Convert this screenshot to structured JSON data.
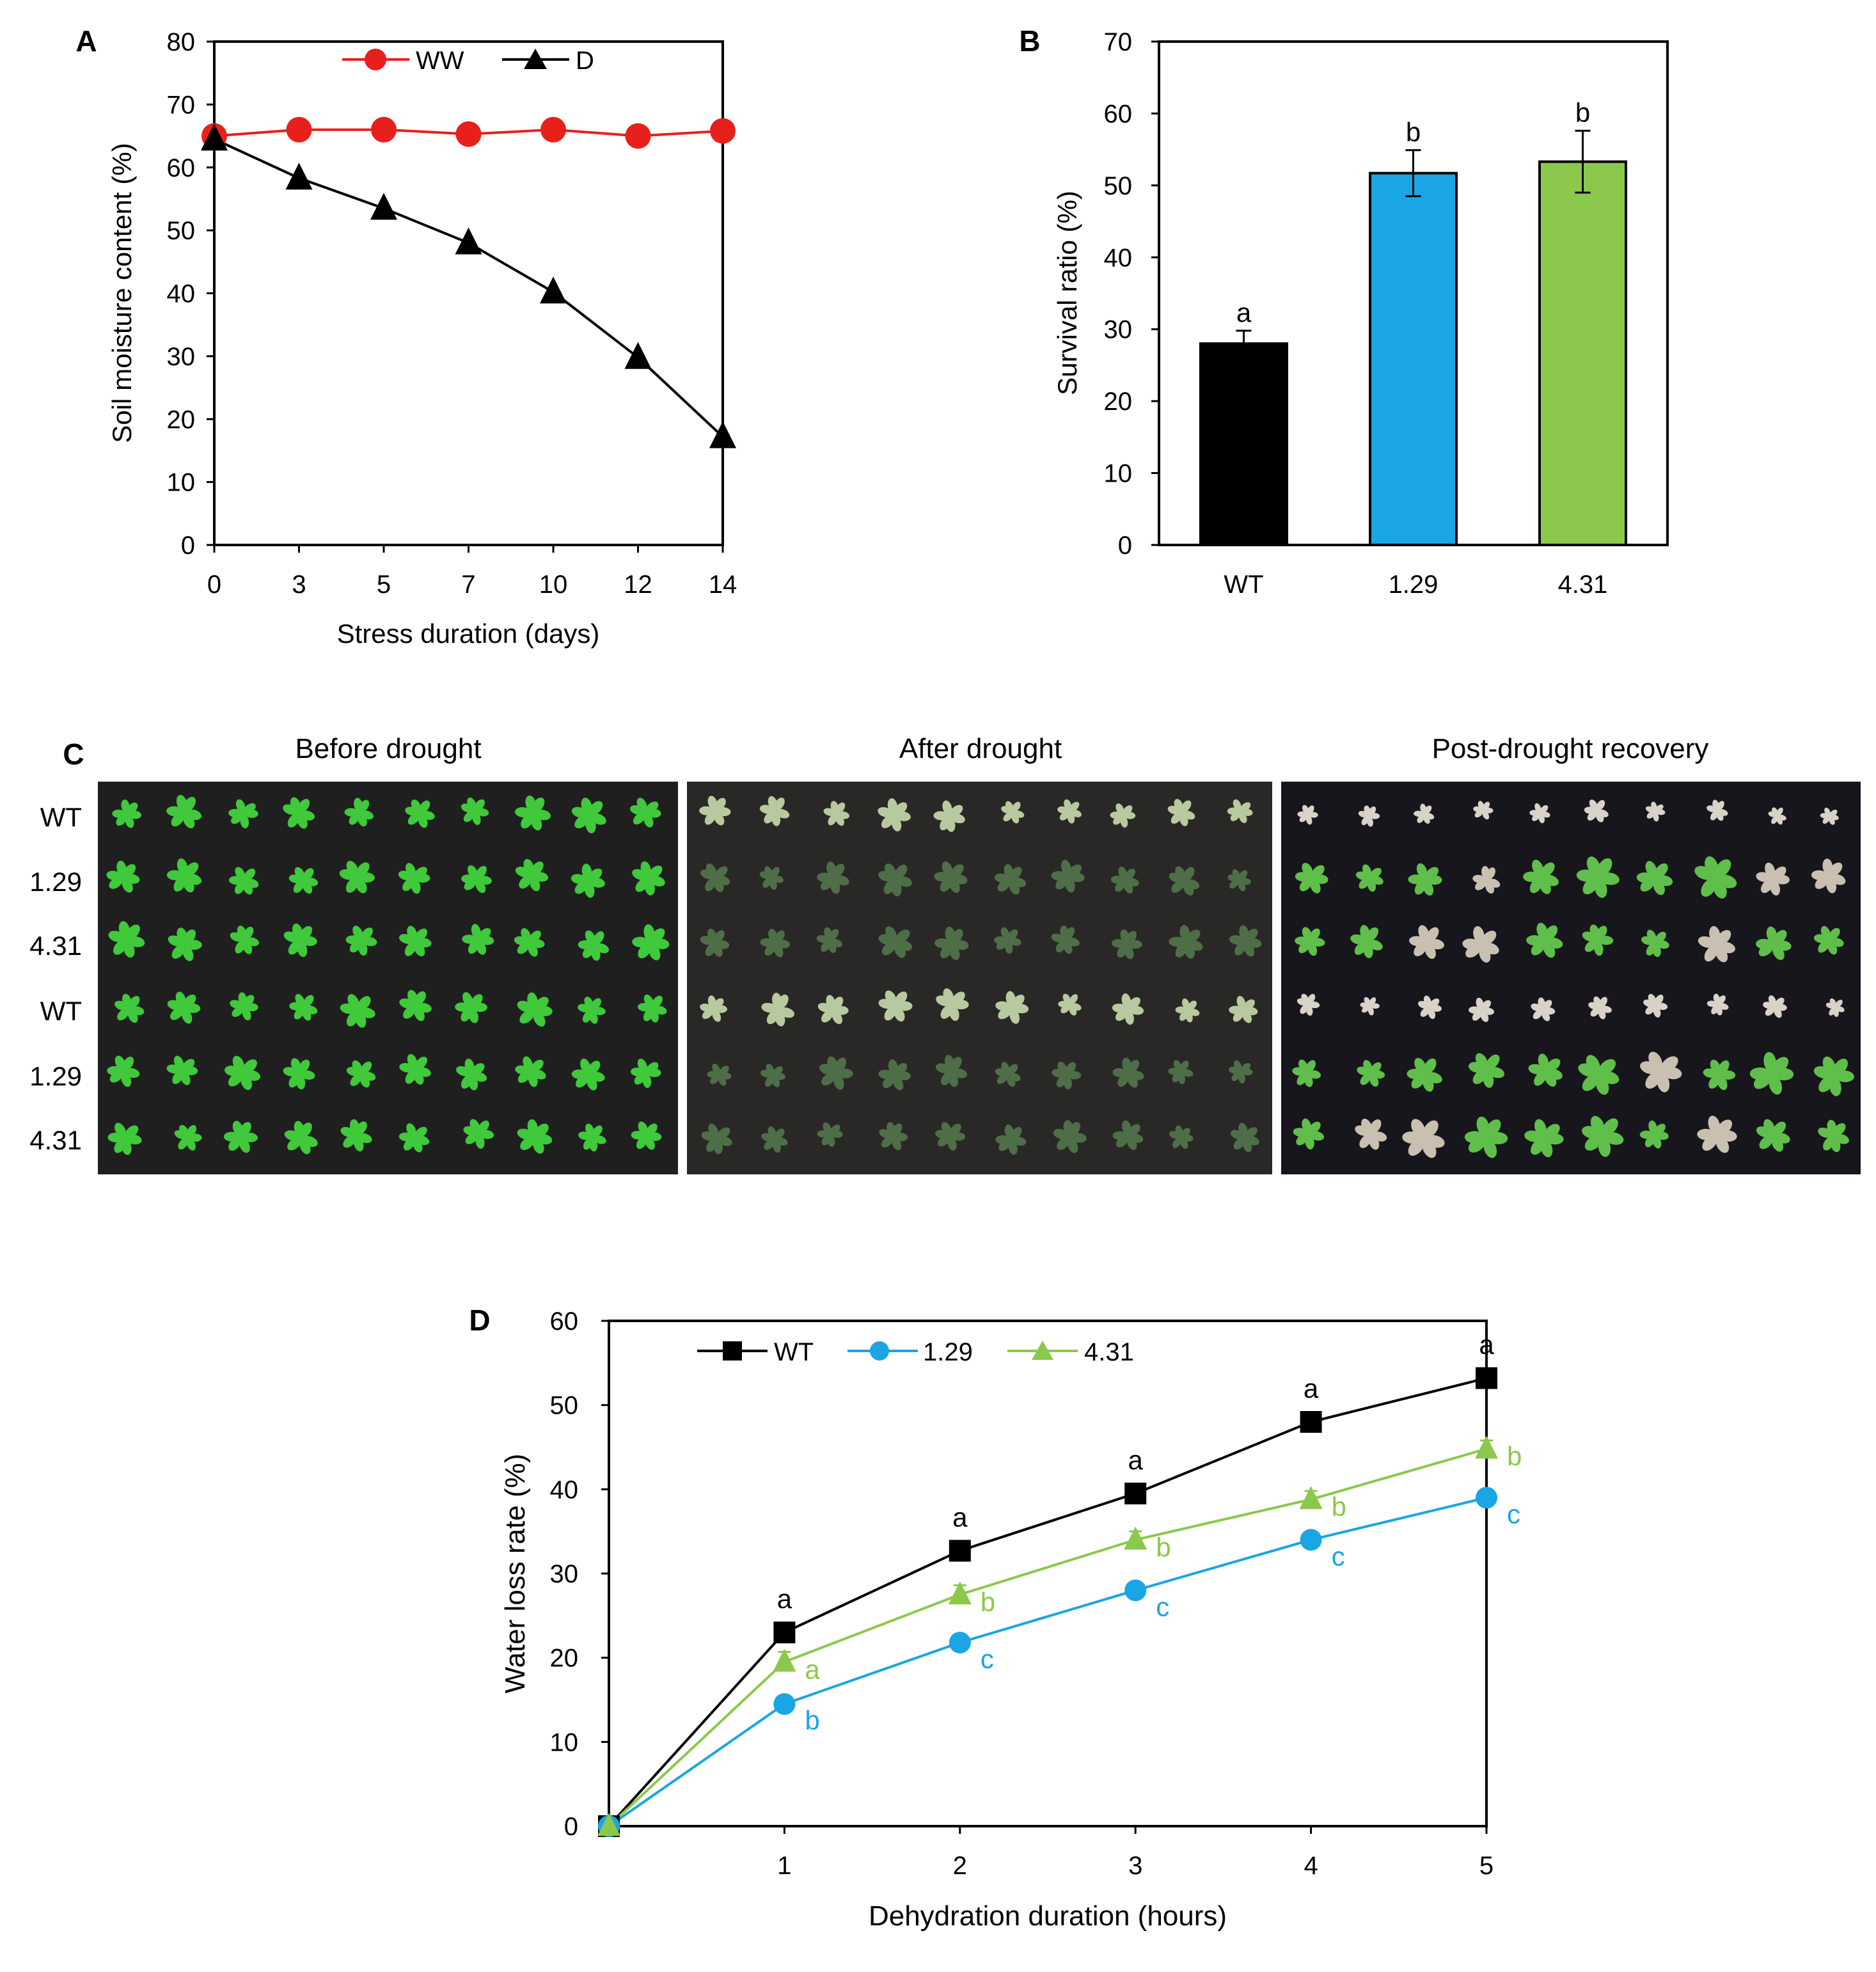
{
  "colors": {
    "ww": "#e8201c",
    "d": "#000000",
    "wt": "#000000",
    "l129": "#1aa5e4",
    "l431": "#8cc84b",
    "photo_bg": "#1c1c1f",
    "plant": "#3ec93a",
    "plant_dry": "#4d6a47"
  },
  "panel_labels": {
    "a": "A",
    "b": "B",
    "c": "C",
    "d": "D"
  },
  "chart_data": [
    {
      "id": "A",
      "type": "line",
      "title": "",
      "xlabel": "Stress duration (days)",
      "ylabel": "Soil moisture content (%)",
      "x": [
        0,
        3,
        5,
        7,
        10,
        12,
        14
      ],
      "xticks": [
        "0",
        "3",
        "5",
        "7",
        "10",
        "12",
        "14"
      ],
      "ylim": [
        0,
        80
      ],
      "yticks": [
        0,
        10,
        20,
        30,
        40,
        50,
        60,
        70,
        80
      ],
      "legend_placement": "top",
      "series": [
        {
          "name": "WW",
          "marker": "circle",
          "color": "#e8201c",
          "values": [
            65,
            66,
            66,
            65.3,
            66,
            65,
            65.8
          ]
        },
        {
          "name": "D",
          "marker": "triangle",
          "color": "#000000",
          "values": [
            64.5,
            58.3,
            53.5,
            48,
            40.2,
            29.8,
            17.2
          ]
        }
      ]
    },
    {
      "id": "B",
      "type": "bar",
      "title": "",
      "xlabel": "",
      "ylabel": "Survival ratio (%)",
      "categories": [
        "WT",
        "1.29",
        "4.31"
      ],
      "values": [
        28,
        51.7,
        53.3
      ],
      "errors": [
        1.8,
        3.2,
        4.3
      ],
      "letters": [
        "a",
        "b",
        "b"
      ],
      "colors": [
        "#000000",
        "#1aa5e4",
        "#8cc84b"
      ],
      "ylim": [
        0,
        70
      ],
      "yticks": [
        0,
        10,
        20,
        30,
        40,
        50,
        60,
        70
      ]
    },
    {
      "id": "D",
      "type": "line",
      "title": "",
      "xlabel": "Dehydration duration (hours)",
      "ylabel": "Water loss rate (%)",
      "x": [
        0,
        1,
        2,
        3,
        4,
        5
      ],
      "xticks": [
        "",
        "1",
        "2",
        "3",
        "4",
        "5"
      ],
      "ylim": [
        0,
        60
      ],
      "yticks": [
        0,
        10,
        20,
        30,
        40,
        50,
        60
      ],
      "legend_placement": "top-left",
      "series": [
        {
          "name": "WT",
          "marker": "square",
          "color": "#000000",
          "values": [
            0,
            23,
            32.7,
            39.5,
            48,
            53.2
          ],
          "errors": [
            0,
            0.6,
            0.8,
            0.9,
            0.8,
            0.9
          ],
          "letters": [
            "",
            "a",
            "a",
            "a",
            "a",
            "a"
          ]
        },
        {
          "name": "1.29",
          "marker": "circle",
          "color": "#1aa5e4",
          "values": [
            0,
            14.5,
            21.8,
            28,
            34,
            39
          ],
          "errors": [
            0,
            0.8,
            0.7,
            0.7,
            0.8,
            0.9
          ],
          "letters": [
            "",
            "b",
            "c",
            "c",
            "c",
            "c"
          ]
        },
        {
          "name": "4.31",
          "marker": "triangle",
          "color": "#8cc84b",
          "values": [
            0,
            19.5,
            27.5,
            34,
            38.8,
            44.8
          ],
          "errors": [
            0,
            1.2,
            1.1,
            1.0,
            1.0,
            1.0
          ],
          "letters": [
            "",
            "a",
            "b",
            "b",
            "b",
            "b"
          ]
        }
      ]
    }
  ],
  "photo_panel": {
    "headers": [
      "Before drought",
      "After drought",
      "Post-drought recovery"
    ],
    "row_labels": [
      "WT",
      "1.29",
      "4.31",
      "WT",
      "1.29",
      "4.31"
    ]
  }
}
